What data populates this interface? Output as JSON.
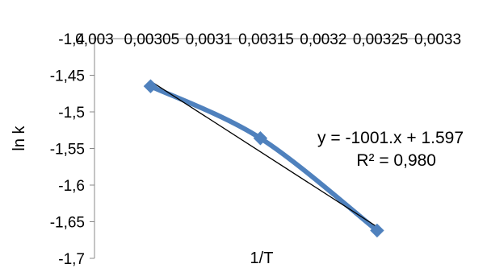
{
  "chart_data": {
    "type": "scatter",
    "title": "",
    "xlabel": "1/T",
    "ylabel": "ln k",
    "xlim": [
      0.003,
      0.0033
    ],
    "ylim": [
      -1.7,
      -1.4
    ],
    "x_ticks": [
      0.003,
      0.00305,
      0.0031,
      0.00315,
      0.0032,
      0.00325,
      0.0033
    ],
    "x_tick_labels": [
      "0,003",
      "0,00305",
      "0,0031",
      "0,00315",
      "0,0032",
      "0,00325",
      "0,0033"
    ],
    "y_ticks": [
      -1.4,
      -1.45,
      -1.5,
      -1.55,
      -1.6,
      -1.65,
      -1.7
    ],
    "y_tick_labels": [
      "-1,4",
      "-1,45",
      "-1,5",
      "-1,55",
      "-1,6",
      "-1,65",
      "-1,7"
    ],
    "grid": false,
    "x_axis_position": "top",
    "series": [
      {
        "values": [
          {
            "x": 0.003049,
            "y": -1.465
          },
          {
            "x": 0.003145,
            "y": -1.536
          },
          {
            "x": 0.003247,
            "y": -1.662
          }
        ],
        "color": "#4f81bd",
        "marker": "diamond",
        "line": "smooth"
      }
    ],
    "trendline": {
      "type": "linear",
      "color": "#000000",
      "x_range": [
        0.003049,
        0.003247
      ],
      "y_range": [
        -1.458,
        -1.657
      ]
    },
    "annotations": {
      "equation": "y = -1001.x + 1.597",
      "r_squared": "R² = 0,980"
    }
  }
}
